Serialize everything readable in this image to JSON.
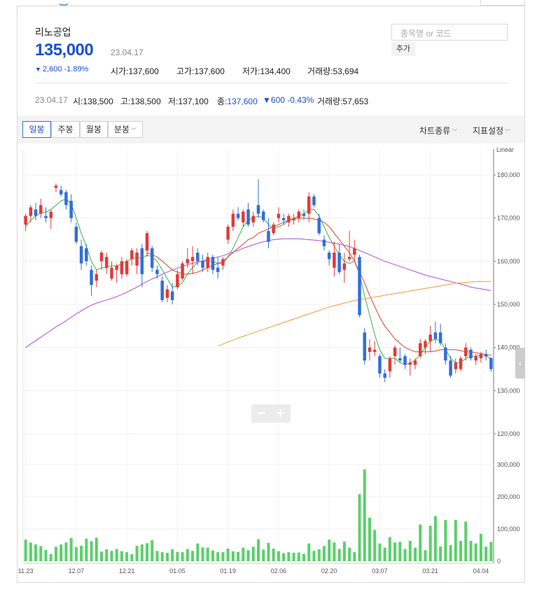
{
  "stock": {
    "name": "리노공업",
    "price": "135,000",
    "date": "23.04.17",
    "change": "2,600",
    "change_pct": "-1.89%",
    "open_label": "시가",
    "open": "137,600",
    "high_label": "고가",
    "high": "137,600",
    "low_label": "저가",
    "low": "134,400",
    "volume_label": "거래량",
    "volume": "53,694"
  },
  "search": {
    "placeholder": "종목명 or 코드",
    "add_label": "추가"
  },
  "ohlc_bar": {
    "date": "23.04.17",
    "open_label": "시",
    "open": "138,500",
    "high_label": "고",
    "high": "138,500",
    "low_label": "저",
    "low": "137,100",
    "close_label": "종",
    "close": "137,600",
    "change": "600",
    "change_pct": "-0.43%",
    "volume_label": "거래량",
    "volume": "57,653"
  },
  "toolbar": {
    "tabs": [
      "일봉",
      "주봉",
      "월봉",
      "분봉"
    ],
    "chart_type_label": "차트종류",
    "indicator_label": "지표설정"
  },
  "zoom": {
    "minus": "−",
    "plus": "+"
  },
  "colors": {
    "up": "#e23a3a",
    "down": "#2f6fdc",
    "volume": "#5ad06a",
    "ma5": "#3cb34a",
    "ma20": "#e0402a",
    "ma60": "#a84fd8",
    "ma120": "#f09a3a",
    "price_blue": "#1b4fd6"
  },
  "chart_data": {
    "type": "candlestick",
    "scale_label": "Linear",
    "price_ticks": [
      "180,000",
      "170,000",
      "160,000",
      "150,000",
      "140,000",
      "130,000",
      "120,000"
    ],
    "volume_ticks": [
      "300,000",
      "200,000",
      "100,000",
      "0"
    ],
    "x_ticks": [
      "11.23",
      "12.07",
      "12.21",
      "01.05",
      "01.19",
      "02.06",
      "02.20",
      "03.07",
      "03.21",
      "04.04"
    ],
    "ylim": [
      120000,
      186000
    ],
    "volume_ylim": [
      0,
      330000
    ],
    "candles": [
      {
        "o": 168500,
        "h": 171000,
        "l": 167000,
        "c": 170500
      },
      {
        "o": 170500,
        "h": 173000,
        "l": 169000,
        "c": 172500
      },
      {
        "o": 172000,
        "h": 173500,
        "l": 169500,
        "c": 170500
      },
      {
        "o": 171000,
        "h": 174500,
        "l": 170000,
        "c": 173000
      },
      {
        "o": 170500,
        "h": 172500,
        "l": 169000,
        "c": 170000
      },
      {
        "o": 170000,
        "h": 172000,
        "l": 167500,
        "c": 171500
      },
      {
        "o": 177000,
        "h": 178000,
        "l": 176000,
        "c": 177500
      },
      {
        "o": 176500,
        "h": 177500,
        "l": 175000,
        "c": 175500
      },
      {
        "o": 176000,
        "h": 176500,
        "l": 172000,
        "c": 173000
      },
      {
        "o": 174000,
        "h": 175500,
        "l": 169000,
        "c": 170000
      },
      {
        "o": 168000,
        "h": 169000,
        "l": 164000,
        "c": 164500
      },
      {
        "o": 163500,
        "h": 165000,
        "l": 158000,
        "c": 159500
      },
      {
        "o": 163000,
        "h": 164000,
        "l": 159000,
        "c": 160000
      },
      {
        "o": 158000,
        "h": 159000,
        "l": 152000,
        "c": 154500
      },
      {
        "o": 155500,
        "h": 158000,
        "l": 154000,
        "c": 157000
      },
      {
        "o": 160000,
        "h": 162500,
        "l": 158000,
        "c": 162000
      },
      {
        "o": 158500,
        "h": 162000,
        "l": 157000,
        "c": 161000
      },
      {
        "o": 156000,
        "h": 160000,
        "l": 155500,
        "c": 158500
      },
      {
        "o": 158000,
        "h": 159500,
        "l": 155000,
        "c": 159000
      },
      {
        "o": 157000,
        "h": 161000,
        "l": 156000,
        "c": 160000
      },
      {
        "o": 157000,
        "h": 160500,
        "l": 156500,
        "c": 160000
      },
      {
        "o": 160500,
        "h": 163000,
        "l": 159000,
        "c": 162500
      },
      {
        "o": 159000,
        "h": 163000,
        "l": 157000,
        "c": 162000
      },
      {
        "o": 163000,
        "h": 164000,
        "l": 154000,
        "c": 157000
      },
      {
        "o": 162500,
        "h": 167000,
        "l": 161000,
        "c": 166500
      },
      {
        "o": 163000,
        "h": 163500,
        "l": 157500,
        "c": 158500
      },
      {
        "o": 158000,
        "h": 159000,
        "l": 156000,
        "c": 157000
      },
      {
        "o": 155500,
        "h": 156500,
        "l": 150500,
        "c": 151000
      },
      {
        "o": 151500,
        "h": 154500,
        "l": 150500,
        "c": 153500
      },
      {
        "o": 153000,
        "h": 155000,
        "l": 150000,
        "c": 151000
      },
      {
        "o": 154000,
        "h": 158000,
        "l": 153500,
        "c": 157000
      },
      {
        "o": 156000,
        "h": 160000,
        "l": 155500,
        "c": 159500
      },
      {
        "o": 159500,
        "h": 163000,
        "l": 158500,
        "c": 160500
      },
      {
        "o": 160000,
        "h": 163500,
        "l": 157000,
        "c": 161000
      },
      {
        "o": 162000,
        "h": 163000,
        "l": 159000,
        "c": 160000
      },
      {
        "o": 160000,
        "h": 161500,
        "l": 157500,
        "c": 158500
      },
      {
        "o": 158500,
        "h": 162000,
        "l": 157500,
        "c": 161000
      },
      {
        "o": 161000,
        "h": 161500,
        "l": 157000,
        "c": 158000
      },
      {
        "o": 158500,
        "h": 161000,
        "l": 156000,
        "c": 157500
      },
      {
        "o": 159000,
        "h": 161000,
        "l": 158000,
        "c": 160500
      },
      {
        "o": 165000,
        "h": 168500,
        "l": 164000,
        "c": 168000
      },
      {
        "o": 168000,
        "h": 172000,
        "l": 167000,
        "c": 171000
      },
      {
        "o": 171000,
        "h": 172500,
        "l": 169500,
        "c": 170000
      },
      {
        "o": 169000,
        "h": 172000,
        "l": 168000,
        "c": 171500
      },
      {
        "o": 172000,
        "h": 173500,
        "l": 168000,
        "c": 168500
      },
      {
        "o": 169000,
        "h": 171500,
        "l": 168000,
        "c": 170500
      },
      {
        "o": 173000,
        "h": 179000,
        "l": 170000,
        "c": 171000
      },
      {
        "o": 171500,
        "h": 172000,
        "l": 169000,
        "c": 169500
      },
      {
        "o": 167000,
        "h": 170000,
        "l": 163000,
        "c": 164500
      },
      {
        "o": 166500,
        "h": 169000,
        "l": 166000,
        "c": 168500
      },
      {
        "o": 170000,
        "h": 172500,
        "l": 169000,
        "c": 171000
      },
      {
        "o": 170000,
        "h": 171000,
        "l": 168500,
        "c": 169500
      },
      {
        "o": 169000,
        "h": 171000,
        "l": 168000,
        "c": 170500
      },
      {
        "o": 169500,
        "h": 171000,
        "l": 168500,
        "c": 170000
      },
      {
        "o": 170000,
        "h": 172000,
        "l": 169000,
        "c": 171500
      },
      {
        "o": 171000,
        "h": 172000,
        "l": 169500,
        "c": 170500
      },
      {
        "o": 171000,
        "h": 176000,
        "l": 169000,
        "c": 175000
      },
      {
        "o": 175000,
        "h": 175500,
        "l": 172500,
        "c": 173000
      },
      {
        "o": 170000,
        "h": 171000,
        "l": 166000,
        "c": 166500
      },
      {
        "o": 165000,
        "h": 166000,
        "l": 162500,
        "c": 163500
      },
      {
        "o": 162000,
        "h": 162500,
        "l": 159000,
        "c": 160500
      },
      {
        "o": 158500,
        "h": 164500,
        "l": 156500,
        "c": 162000
      },
      {
        "o": 162000,
        "h": 164000,
        "l": 157000,
        "c": 157500
      },
      {
        "o": 158000,
        "h": 162000,
        "l": 155000,
        "c": 159500
      },
      {
        "o": 160500,
        "h": 167000,
        "l": 160000,
        "c": 161000
      },
      {
        "o": 161500,
        "h": 165000,
        "l": 160000,
        "c": 163000
      },
      {
        "o": 161000,
        "h": 161500,
        "l": 147000,
        "c": 147500
      },
      {
        "o": 143500,
        "h": 144500,
        "l": 136000,
        "c": 137000
      },
      {
        "o": 139000,
        "h": 142000,
        "l": 137000,
        "c": 140000
      },
      {
        "o": 139000,
        "h": 141500,
        "l": 138000,
        "c": 139500
      },
      {
        "o": 138000,
        "h": 138500,
        "l": 133000,
        "c": 134000
      },
      {
        "o": 134000,
        "h": 135000,
        "l": 132000,
        "c": 133000
      },
      {
        "o": 134500,
        "h": 138000,
        "l": 133000,
        "c": 137500
      },
      {
        "o": 138000,
        "h": 140500,
        "l": 136000,
        "c": 140000
      },
      {
        "o": 137500,
        "h": 140000,
        "l": 136500,
        "c": 137000
      },
      {
        "o": 138000,
        "h": 138500,
        "l": 135000,
        "c": 136000
      },
      {
        "o": 136000,
        "h": 137500,
        "l": 133500,
        "c": 136500
      },
      {
        "o": 136000,
        "h": 137500,
        "l": 135000,
        "c": 137000
      },
      {
        "o": 138000,
        "h": 142000,
        "l": 137500,
        "c": 141000
      },
      {
        "o": 140000,
        "h": 142000,
        "l": 138500,
        "c": 141500
      },
      {
        "o": 141500,
        "h": 145000,
        "l": 139000,
        "c": 143000
      },
      {
        "o": 143500,
        "h": 146000,
        "l": 141000,
        "c": 142000
      },
      {
        "o": 143500,
        "h": 145500,
        "l": 140500,
        "c": 141000
      },
      {
        "o": 140000,
        "h": 141000,
        "l": 136000,
        "c": 137000
      },
      {
        "o": 137000,
        "h": 138000,
        "l": 133000,
        "c": 133500
      },
      {
        "o": 135000,
        "h": 137500,
        "l": 134000,
        "c": 136500
      },
      {
        "o": 135000,
        "h": 138000,
        "l": 134500,
        "c": 137500
      },
      {
        "o": 138000,
        "h": 141000,
        "l": 137000,
        "c": 140000
      },
      {
        "o": 139500,
        "h": 140000,
        "l": 137000,
        "c": 137500
      },
      {
        "o": 137000,
        "h": 138500,
        "l": 136000,
        "c": 138000
      },
      {
        "o": 137500,
        "h": 139000,
        "l": 136500,
        "c": 138500
      },
      {
        "o": 138500,
        "h": 139500,
        "l": 137000,
        "c": 138000
      },
      {
        "o": 137600,
        "h": 137600,
        "l": 134400,
        "c": 135000
      }
    ],
    "volumes": [
      67000,
      58000,
      52000,
      47000,
      35000,
      22000,
      45000,
      52000,
      58000,
      72000,
      44000,
      48000,
      70000,
      62000,
      73000,
      30000,
      37000,
      32000,
      38000,
      31000,
      28000,
      22000,
      48000,
      52000,
      56000,
      65000,
      32000,
      28000,
      26000,
      37000,
      29000,
      28000,
      38000,
      32000,
      55000,
      43000,
      42000,
      33000,
      28000,
      28000,
      39000,
      31000,
      29000,
      42000,
      34000,
      45000,
      68000,
      36000,
      57000,
      39000,
      31000,
      25000,
      28000,
      26000,
      27000,
      23000,
      55000,
      32000,
      37000,
      47000,
      67000,
      58000,
      38000,
      61000,
      42000,
      28000,
      208000,
      285000,
      135000,
      97000,
      55000,
      42000,
      75000,
      58000,
      60000,
      38000,
      63000,
      42000,
      114000,
      34000,
      110000,
      140000,
      46000,
      128000,
      50000,
      128000,
      63000,
      123000,
      63000,
      55000,
      85000,
      45000,
      60000
    ],
    "ma_lines": [
      {
        "period": 5,
        "values": [
          168000,
          169500,
          170500,
          171200,
          171400,
          172000,
          173000,
          174000,
          174400,
          173400,
          170000,
          166500,
          163500,
          160000,
          158000,
          158500,
          158500,
          159000,
          158800,
          159500,
          160000,
          160500,
          161000,
          160500,
          161500,
          161000,
          160000,
          158000,
          156000,
          154000,
          154200,
          155000,
          157000,
          158500,
          159800,
          160000,
          160000,
          160000,
          159500,
          159500,
          161000,
          163000,
          165500,
          168000,
          169500,
          170000,
          170500,
          170000,
          168500,
          167500,
          168000,
          168500,
          169500,
          170000,
          170500,
          171000,
          172000,
          172000,
          170500,
          168000,
          165500,
          163500,
          161500,
          160000,
          159500,
          160000,
          157000,
          152000,
          147500,
          143000,
          139500,
          137500,
          137500,
          137500,
          136500,
          136000,
          136500,
          137000,
          138500,
          140000,
          141500,
          142000,
          141500,
          139500,
          137500,
          136500,
          136500,
          137500,
          138000,
          138000,
          138200,
          138000,
          137500
        ]
      },
      {
        "period": 20,
        "values": [
          null,
          null,
          null,
          null,
          null,
          null,
          null,
          null,
          null,
          null,
          null,
          null,
          null,
          null,
          null,
          null,
          null,
          null,
          null,
          null,
          null,
          null,
          null,
          null,
          162000,
          161500,
          161000,
          160000,
          159000,
          158000,
          157500,
          157000,
          157000,
          157200,
          157500,
          158000,
          158500,
          159000,
          159500,
          160000,
          161000,
          162000,
          163000,
          164000,
          165000,
          165500,
          166500,
          167000,
          167500,
          168000,
          168500,
          169000,
          169500,
          169800,
          170000,
          170000,
          170000,
          169800,
          169500,
          169000,
          168000,
          166500,
          165000,
          163500,
          162000,
          160000,
          157500,
          155000,
          152000,
          149500,
          147000,
          145000,
          143500,
          142000,
          141000,
          140000,
          139500,
          139000,
          139000,
          139000,
          139000,
          139200,
          139500,
          139500,
          139500,
          139500,
          139300,
          139000,
          139000,
          138800,
          138600,
          138400,
          138200
        ]
      },
      {
        "period": 60,
        "values": [
          140000,
          140800,
          141600,
          142400,
          143200,
          144000,
          144800,
          145500,
          146200,
          147000,
          147800,
          148500,
          149200,
          149800,
          150300,
          150700,
          151000,
          151400,
          151800,
          152300,
          152800,
          153400,
          154000,
          154700,
          155300,
          155900,
          156400,
          157000,
          157500,
          158000,
          158400,
          158800,
          159200,
          159500,
          159800,
          160100,
          160400,
          160700,
          161000,
          161300,
          161700,
          162100,
          162500,
          163000,
          163400,
          163800,
          164200,
          164500,
          164800,
          165000,
          165100,
          165200,
          165200,
          165200,
          165200,
          165100,
          165000,
          164900,
          164800,
          164600,
          164400,
          164200,
          164000,
          163700,
          163400,
          163000,
          162500,
          162000,
          161500,
          161000,
          160500,
          160000,
          159600,
          159200,
          158800,
          158400,
          158000,
          157600,
          157200,
          156800,
          156500,
          156200,
          155900,
          155600,
          155300,
          155000,
          154700,
          154400,
          154000,
          153800,
          153600,
          153400,
          153200
        ]
      },
      {
        "period": 120,
        "values": [
          null,
          null,
          null,
          null,
          null,
          null,
          null,
          null,
          null,
          null,
          null,
          null,
          null,
          null,
          null,
          null,
          null,
          null,
          null,
          null,
          null,
          null,
          null,
          null,
          null,
          null,
          null,
          null,
          null,
          null,
          null,
          null,
          null,
          null,
          null,
          null,
          null,
          null,
          140400,
          140800,
          141300,
          141700,
          142200,
          142600,
          143000,
          143400,
          143800,
          144200,
          144600,
          145000,
          145400,
          145800,
          146200,
          146600,
          147000,
          147400,
          147800,
          148200,
          148600,
          149000,
          149400,
          149700,
          150000,
          150300,
          150600,
          150900,
          151100,
          151300,
          151500,
          151700,
          151900,
          152100,
          152300,
          152500,
          152700,
          152900,
          153100,
          153300,
          153500,
          153700,
          153900,
          154100,
          154300,
          154500,
          154700,
          154900,
          155000,
          155100,
          155200,
          155300,
          155300,
          155300,
          155300
        ]
      }
    ]
  }
}
